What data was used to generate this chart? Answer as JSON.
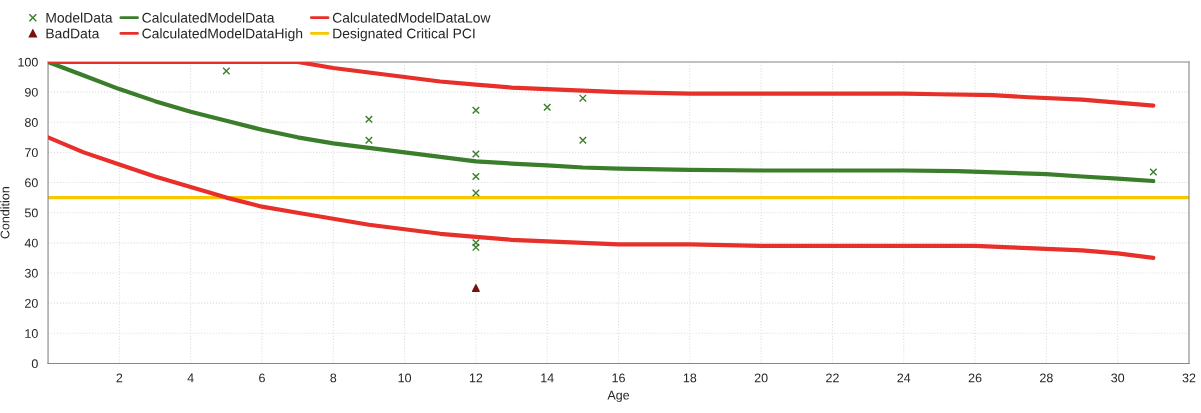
{
  "chart_data": {
    "type": "line",
    "xlabel": "Age",
    "ylabel": "Condition",
    "xlim": [
      0,
      32
    ],
    "ylim": [
      0,
      100
    ],
    "xticks": [
      {
        "value": 0,
        "label": null
      },
      2,
      4,
      6,
      8,
      10,
      12,
      14,
      16,
      18,
      20,
      22,
      24,
      26,
      28,
      30,
      32
    ],
    "yticks": [
      0,
      10,
      20,
      30,
      40,
      50,
      60,
      70,
      80,
      90,
      100
    ],
    "grid": true,
    "legend": "top left",
    "series": [
      {
        "name": "ModelData",
        "type": "scatter",
        "marker": "cross",
        "color": "#3a7d2a",
        "x": [
          5,
          9,
          9,
          12,
          12,
          12,
          12,
          12,
          12,
          14,
          15,
          15,
          31
        ],
        "values": [
          97,
          81,
          74,
          84,
          69.5,
          62,
          56.5,
          40,
          38.5,
          85,
          88,
          74,
          63.5
        ]
      },
      {
        "name": "BadData",
        "type": "scatter",
        "marker": "triangle",
        "color": "#7a1010",
        "x": [
          12
        ],
        "values": [
          25
        ]
      },
      {
        "name": "CalculatedModelData",
        "marker": "none",
        "color": "#3a7d2a",
        "x": [
          0,
          1,
          2,
          3,
          4,
          5,
          6,
          7,
          8,
          9,
          10,
          11,
          12,
          13,
          14,
          15,
          16,
          18,
          20,
          22,
          24,
          25.5,
          27,
          28,
          29,
          30,
          31
        ],
        "values": [
          100,
          95.5,
          91,
          87,
          83.5,
          80.5,
          77.5,
          75,
          73,
          71.5,
          70,
          68.5,
          67,
          66.3,
          65.7,
          65,
          64.6,
          64.2,
          64,
          64,
          64,
          63.8,
          63.2,
          62.8,
          62,
          61.3,
          60.5
        ]
      },
      {
        "name": "CalculatedModelDataHigh",
        "marker": "none",
        "color": "#e8302a",
        "x": [
          0,
          7,
          8,
          9,
          10,
          11,
          12,
          13,
          14,
          15,
          16,
          18,
          20,
          22,
          24,
          25,
          26.5,
          27.5,
          29,
          30,
          31
        ],
        "values": [
          100,
          100,
          98,
          96.5,
          95,
          93.5,
          92.5,
          91.5,
          91,
          90.5,
          90,
          89.5,
          89.5,
          89.5,
          89.5,
          89.3,
          89,
          88.3,
          87.5,
          86.5,
          85.5
        ]
      },
      {
        "name": "CalculatedModelDataLow",
        "marker": "none",
        "color": "#e8302a",
        "x": [
          0,
          1,
          2,
          3,
          4,
          5,
          6,
          7,
          8,
          9,
          10,
          11,
          12,
          13,
          14,
          15,
          16,
          18,
          20,
          22,
          24,
          26,
          27,
          28,
          29,
          30,
          31
        ],
        "values": [
          75,
          70,
          66,
          62,
          58.5,
          55,
          52,
          50,
          48,
          46,
          44.5,
          43,
          42,
          41,
          40.5,
          40,
          39.5,
          39.5,
          39,
          39,
          39,
          39,
          38.5,
          38,
          37.5,
          36.5,
          35
        ]
      }
    ],
    "ref_lines": [
      {
        "axis": "y",
        "value": 55,
        "label": "Designated Critical PCI",
        "color": "#f5c800",
        "line_style": "solid"
      }
    ]
  }
}
